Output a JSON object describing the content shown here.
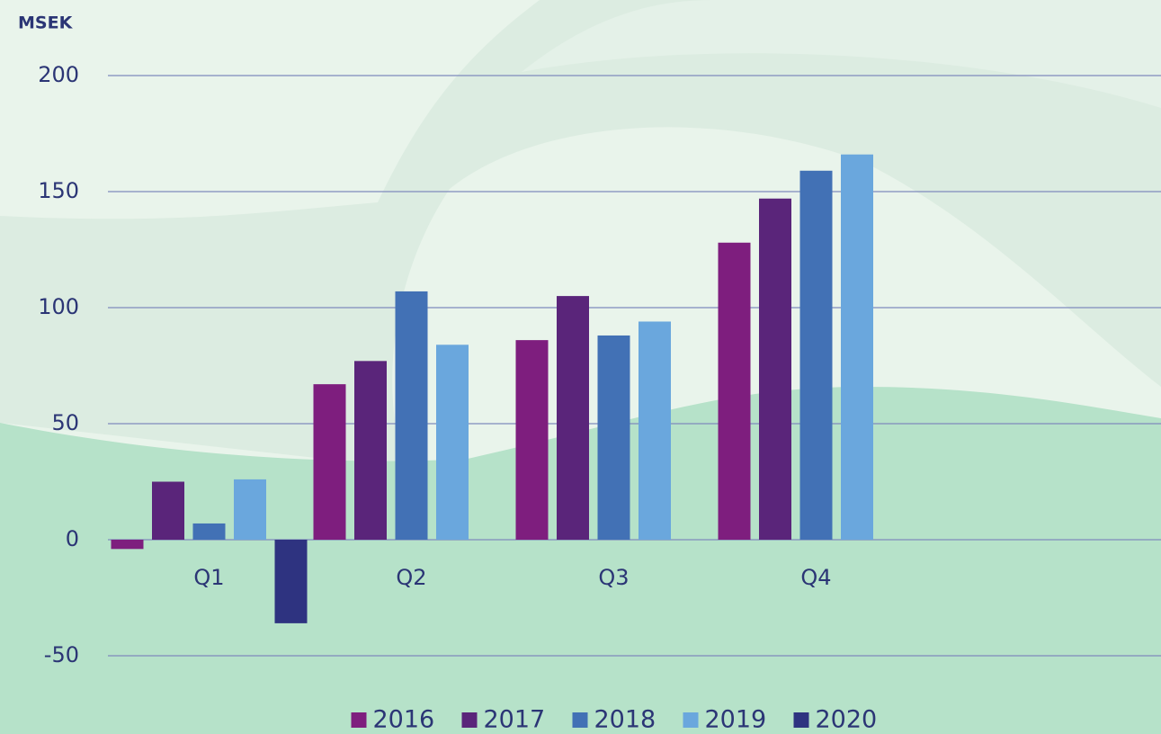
{
  "chart_data": {
    "type": "bar",
    "y_label": "MSEK",
    "categories": [
      "Q1",
      "Q2",
      "Q3",
      "Q4"
    ],
    "series": [
      {
        "name": "2016",
        "color": "#7e1e7e",
        "values": [
          -4,
          67,
          86,
          128
        ]
      },
      {
        "name": "2017",
        "color": "#5a257a",
        "values": [
          25,
          77,
          105,
          147
        ]
      },
      {
        "name": "2018",
        "color": "#4271b5",
        "values": [
          7,
          107,
          88,
          159
        ]
      },
      {
        "name": "2019",
        "color": "#6aa7dd",
        "values": [
          26,
          84,
          94,
          166
        ]
      },
      {
        "name": "2020",
        "color": "#2e3380",
        "values": [
          -36,
          null,
          null,
          null
        ]
      }
    ],
    "ylim": [
      -50,
      200
    ],
    "yticks": [
      -50,
      0,
      50,
      100,
      150,
      200
    ],
    "grid": true,
    "legend": "bottom"
  }
}
